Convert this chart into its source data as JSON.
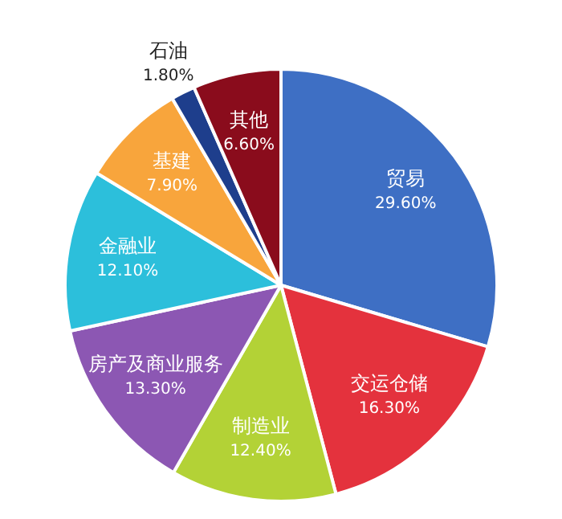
{
  "chart_data": {
    "type": "pie",
    "categories": [
      "贸易",
      "交运仓储",
      "制造业",
      "房产及商业服务",
      "金融业",
      "基建",
      "石油",
      "其他"
    ],
    "values": [
      29.6,
      16.3,
      12.4,
      13.3,
      12.1,
      7.9,
      1.8,
      6.6
    ],
    "value_labels": [
      "29.60%",
      "16.30%",
      "12.40%",
      "13.30%",
      "12.10%",
      "7.90%",
      "1.80%",
      "6.60%"
    ],
    "colors": [
      "#3e6fc4",
      "#e4323d",
      "#b3d236",
      "#8c57b3",
      "#2cbfdb",
      "#f8a53c",
      "#1e3e8c",
      "#8a0c1c"
    ],
    "legend": false
  }
}
